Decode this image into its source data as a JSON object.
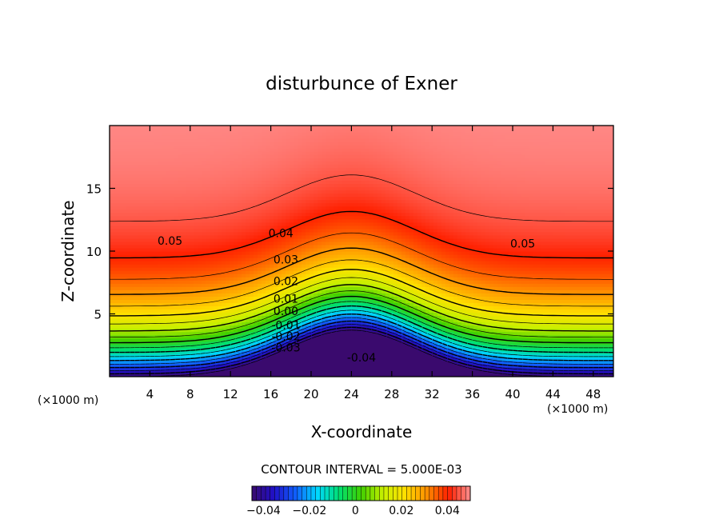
{
  "chart_data": {
    "type": "contour",
    "title": "disturbunce of Exner",
    "xlabel": "X-coordinate",
    "ylabel": "Z-coordinate",
    "x_units": "(×1000 m)",
    "x_units_right": "(×1000 m)",
    "xlim": [
      0,
      50
    ],
    "ylim": [
      0,
      20
    ],
    "x_ticks": [
      4,
      8,
      12,
      16,
      20,
      24,
      28,
      32,
      36,
      40,
      44,
      48
    ],
    "y_ticks": [
      5,
      10,
      15
    ],
    "contour_interval_text": "CONTOUR INTERVAL = 5.000E-03",
    "contour_interval": 0.005,
    "field_range": [
      -0.045,
      0.05
    ],
    "field_model": {
      "center_x": 24,
      "height_offset_at_center": 3.7,
      "bump_width": 9
    },
    "contour_labels": [
      {
        "text": "0.05",
        "x": 6,
        "z": 10.5
      },
      {
        "text": "0.04",
        "x": 17,
        "z": 11.1
      },
      {
        "text": "0.05",
        "x": 41,
        "z": 10.3
      },
      {
        "text": "0.03",
        "x": 17.5,
        "z": 9.0
      },
      {
        "text": "0.02",
        "x": 17.5,
        "z": 7.3
      },
      {
        "text": "0.01",
        "x": 17.5,
        "z": 5.9
      },
      {
        "text": "0.00",
        "x": 17.5,
        "z": 4.9
      },
      {
        "text": "-0.01",
        "x": 17.5,
        "z": 3.8
      },
      {
        "text": "-0.02",
        "x": 17.5,
        "z": 2.9
      },
      {
        "text": "-0.03",
        "x": 17.5,
        "z": 2.0
      },
      {
        "text": "-0.04",
        "x": 25,
        "z": 1.2
      }
    ],
    "colorbar": {
      "ticks": [
        -0.04,
        -0.02,
        0,
        0.02,
        0.04
      ],
      "tick_labels": [
        "−0.04",
        "−0.02",
        "0",
        "0.02",
        "0.04"
      ],
      "colors": [
        "#3a0a6e",
        "#2010c8",
        "#1060ff",
        "#00d8ff",
        "#00e070",
        "#40d000",
        "#c8f000",
        "#ffe000",
        "#ff9000",
        "#ff2000",
        "#ff9090"
      ]
    }
  }
}
